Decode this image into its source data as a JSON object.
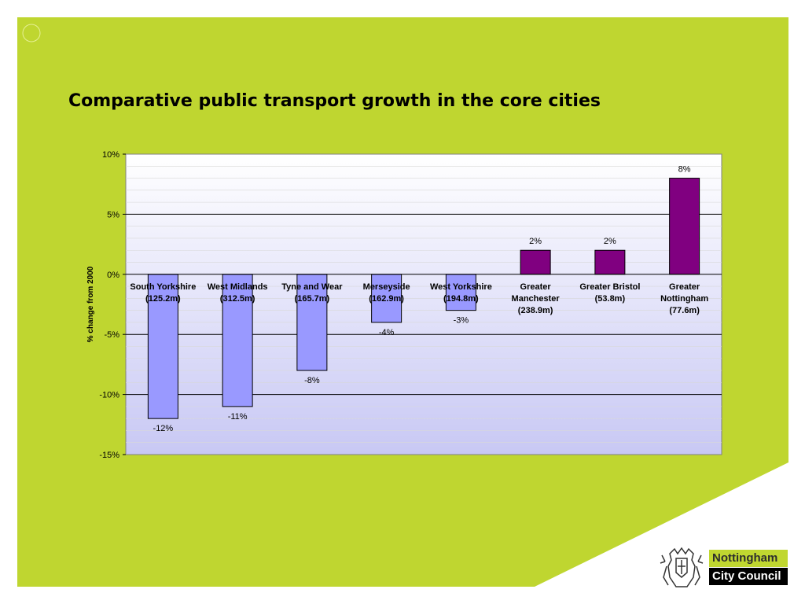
{
  "slide": {
    "title": "Comparative public transport growth in the core cities",
    "background_color": "#bfd630"
  },
  "logo": {
    "line1": "Nottingham",
    "line2": "City Council",
    "icon": "crest-icon"
  },
  "chart_data": {
    "type": "bar",
    "title": "",
    "xlabel": "",
    "ylabel": "% change from 2000",
    "ylim": [
      -15,
      10
    ],
    "yticks": [
      "10%",
      "5%",
      "0%",
      "-5%",
      "-10%",
      "-15%"
    ],
    "ytick_values": [
      10,
      5,
      0,
      -5,
      -10,
      -15
    ],
    "grid": true,
    "categories": [
      [
        "South Yorkshire",
        "(125.2m)"
      ],
      [
        "West Midlands",
        "(312.5m)"
      ],
      [
        "Tyne and Wear",
        "(165.7m)"
      ],
      [
        "Merseyside",
        "(162.9m)"
      ],
      [
        "West Yorkshire",
        "(194.8m)"
      ],
      [
        "Greater",
        "Manchester",
        "(238.9m)"
      ],
      [
        "Greater Bristol",
        "(53.8m)"
      ],
      [
        "Greater",
        "Nottingham",
        "(77.6m)"
      ]
    ],
    "values": [
      -12,
      -11,
      -8,
      -4,
      -3,
      2,
      2,
      8
    ],
    "data_labels": [
      "-12%",
      "-11%",
      "-8%",
      "-4%",
      "-3%",
      "2%",
      "2%",
      "8%"
    ],
    "colors": {
      "negative": "#9999ff",
      "positive": "#800080",
      "plot_top": "#ffffff",
      "plot_bottom": "#c8c8f4"
    }
  }
}
